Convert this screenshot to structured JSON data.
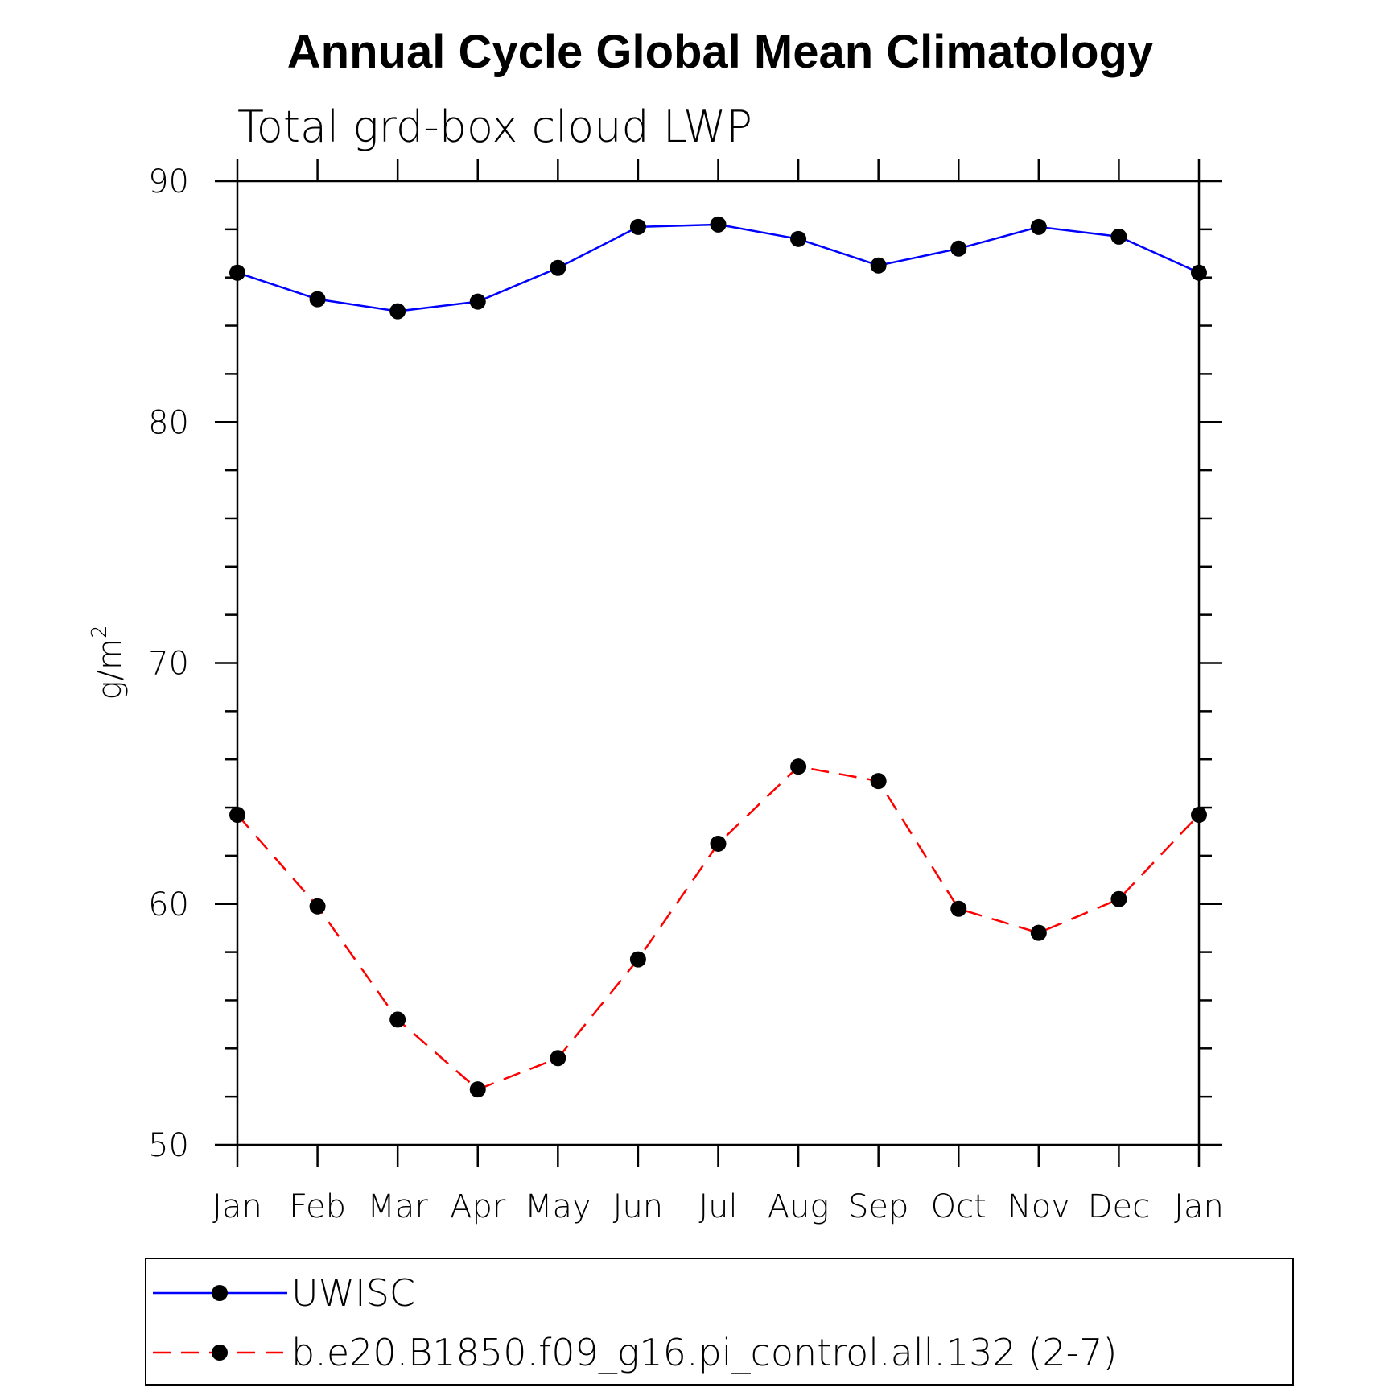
{
  "chart_data": {
    "type": "line",
    "title": "Annual Cycle Global Mean Climatology",
    "subtitle": "Total grd-box cloud LWP",
    "xlabel": "",
    "ylabel_base": "g/m",
    "ylabel_sup": "2",
    "categories": [
      "Jan",
      "Feb",
      "Mar",
      "Apr",
      "May",
      "Jun",
      "Jul",
      "Aug",
      "Sep",
      "Oct",
      "Nov",
      "Dec",
      "Jan"
    ],
    "ylim": [
      50,
      90
    ],
    "yticks": [
      50,
      60,
      70,
      80,
      90
    ],
    "y_minor_step": 2,
    "grid": false,
    "legend_position": "bottom",
    "series": [
      {
        "name": "UWISC",
        "values": [
          86.2,
          85.1,
          84.6,
          85.0,
          86.4,
          88.1,
          88.2,
          87.6,
          86.5,
          87.2,
          88.1,
          87.7,
          86.2
        ],
        "color": "#0000ff",
        "dash": "solid",
        "marker": "filled-circle"
      },
      {
        "name": "b.e20.B1850.f09_g16.pi_control.all.132 (2-7)",
        "values": [
          63.7,
          59.9,
          55.2,
          52.3,
          53.6,
          57.7,
          62.5,
          65.7,
          65.1,
          59.8,
          58.8,
          60.2,
          63.7
        ],
        "color": "#ff0000",
        "dash": "dashed",
        "marker": "filled-circle"
      }
    ]
  }
}
